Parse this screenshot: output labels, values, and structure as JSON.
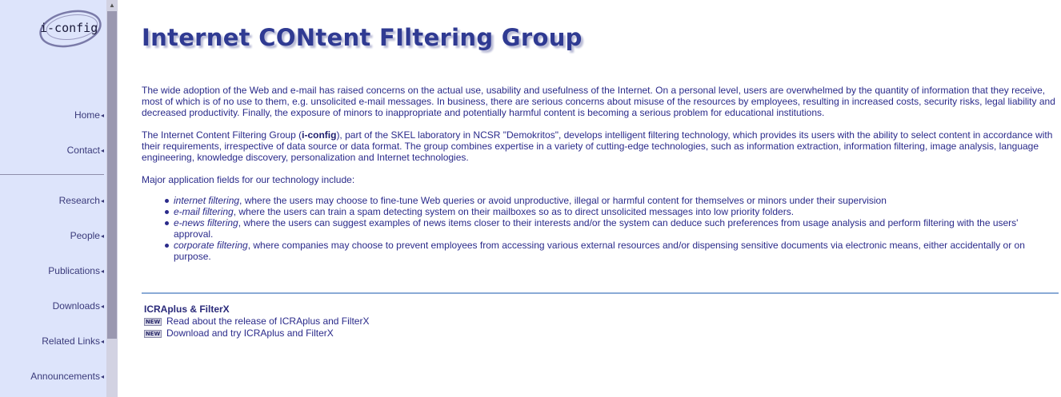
{
  "logo": {
    "text": "i-config"
  },
  "nav": {
    "items": [
      {
        "label": "Home"
      },
      {
        "label": "Contact"
      },
      {
        "label": "Research"
      },
      {
        "label": "People"
      },
      {
        "label": "Publications"
      },
      {
        "label": "Downloads"
      },
      {
        "label": "Related Links"
      },
      {
        "label": "Announcements"
      }
    ],
    "arrow": "◂"
  },
  "main": {
    "title": "Internet CONtent FIltering Group",
    "para1": "The wide adoption of the Web and e-mail has raised concerns on the actual use, usability and usefulness of the Internet. On a personal level, users are overwhelmed by the quantity of information that they receive, most of which is of no use to them, e.g. unsolicited e-mail messages. In business, there are serious concerns about misuse of the resources by employees, resulting in increased costs, security risks, legal liability and decreased productivity. Finally, the exposure of minors to inappropriate and potentially harmful content is becoming a serious problem for educational institutions.",
    "para2": {
      "before": "The Internet Content Filtering Group (",
      "bold": "i-config",
      "after": "), part of the SKEL laboratory in NCSR \"Demokritos\", develops intelligent filtering technology, which provides its users with the ability to select content in accordance with their requirements, irrespective of data source or data format. The group combines expertise in a variety of cutting-edge technologies, such as information extraction, information filtering, image analysis, language engineering, knowledge discovery, personalization and Internet technologies."
    },
    "fields_intro": "Major application fields for our technology include:",
    "fields": [
      {
        "term": "internet filtering",
        "text": ", where the users may choose to fine-tune Web queries or avoid unproductive, illegal or harmful content for themselves or minors under their supervision"
      },
      {
        "term": "e-mail filtering",
        "text": ", where the users can train a spam detecting system on their mailboxes so as to direct unsolicited messages into low priority folders."
      },
      {
        "term": "e-news filtering",
        "text": ", where the users can suggest examples of news items closer to their interests and/or the system can deduce such preferences from usage analysis and perform filtering with the users' approval."
      },
      {
        "term": "corporate filtering",
        "text": ", where companies may choose to prevent employees from accessing various external resources and/or dispensing sensitive documents via electronic means, either accidentally or on purpose."
      }
    ]
  },
  "news": {
    "title": "ICRAplus & FilterX",
    "badge": "NEW",
    "items": [
      {
        "label": "Read about the release of ICRAplus and FilterX"
      },
      {
        "label": "Download and try ICRAplus and FilterX"
      }
    ]
  },
  "colors": {
    "nav_bg": "#dde4fb",
    "text": "#2a2a8a",
    "title": "#2f3a92",
    "rule": "#8aaad6"
  }
}
